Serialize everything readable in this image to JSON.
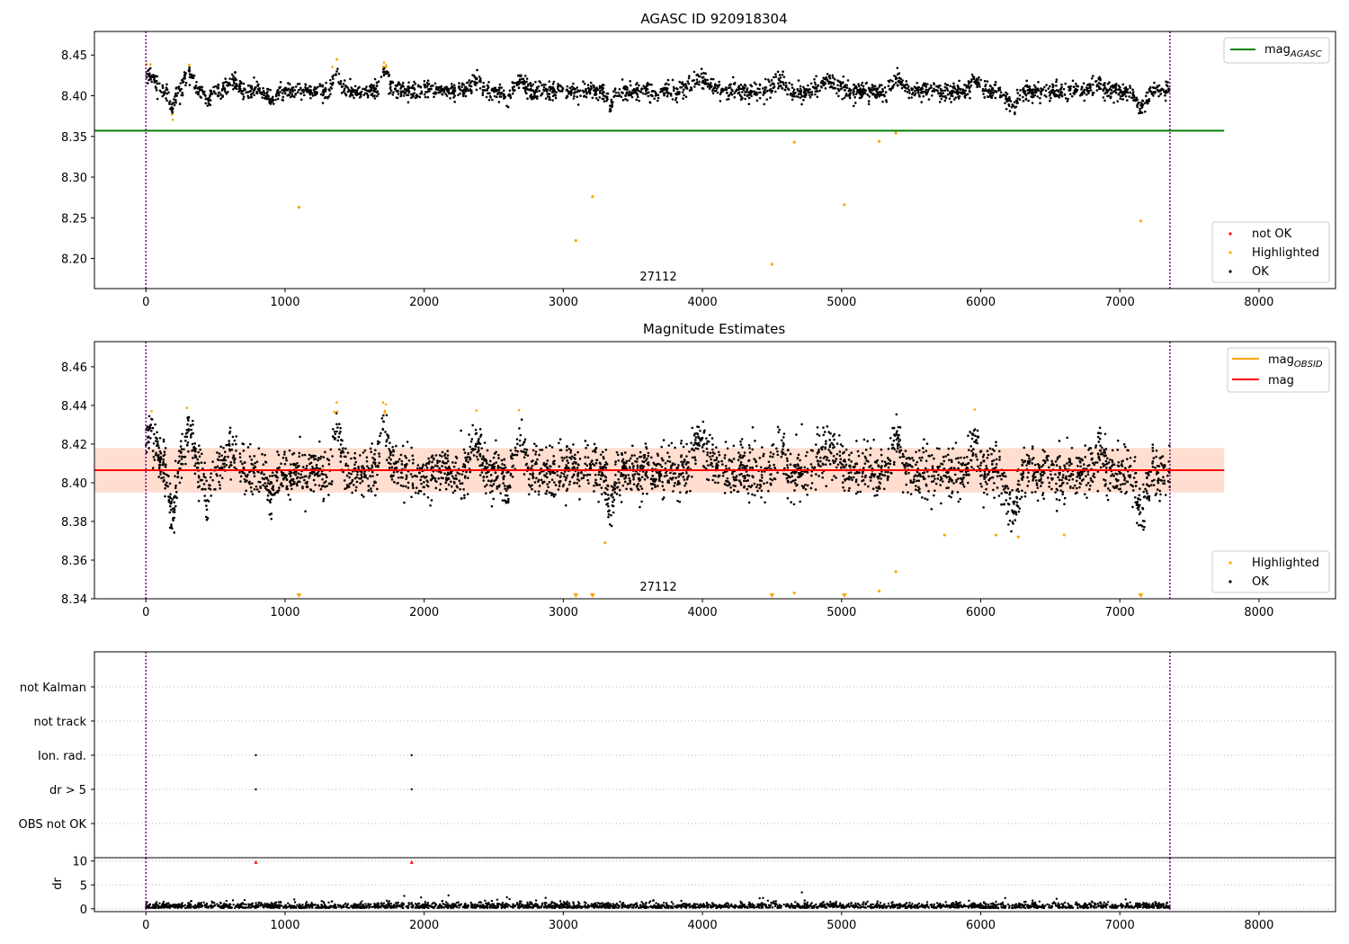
{
  "chart_data": [
    {
      "type": "scatter",
      "title": "AGASC ID 920918304",
      "xlim": [
        -370,
        8550
      ],
      "ylim": [
        8.163,
        8.479
      ],
      "xticks": [
        0,
        1000,
        2000,
        3000,
        4000,
        5000,
        6000,
        7000,
        8000
      ],
      "yticks": [
        8.2,
        8.25,
        8.3,
        8.35,
        8.4,
        8.45
      ],
      "grid": false,
      "mag_agasc": 8.357,
      "mag_agasc_xrange": [
        -370,
        7750
      ],
      "obs_boundaries": [
        0,
        7360
      ],
      "obsid_label": "27112",
      "obsid_label_x": 3680,
      "highlighted_outliers": [
        [
          1100,
          8.263
        ],
        [
          3090,
          8.222
        ],
        [
          3210,
          8.276
        ],
        [
          4500,
          8.193
        ],
        [
          4660,
          8.343
        ],
        [
          5020,
          8.266
        ],
        [
          5270,
          8.344
        ],
        [
          5390,
          8.354
        ],
        [
          7150,
          8.246
        ]
      ],
      "legend_upper": {
        "position": "top-right",
        "entries": [
          "mag_AGASC"
        ]
      },
      "legend_lower": {
        "position": "bottom-right",
        "entries": [
          "not OK",
          "Highlighted",
          "OK"
        ]
      }
    },
    {
      "type": "scatter",
      "title": "Magnitude Estimates",
      "xlim": [
        -370,
        8550
      ],
      "ylim": [
        8.34,
        8.473
      ],
      "xticks": [
        0,
        1000,
        2000,
        3000,
        4000,
        5000,
        6000,
        7000,
        8000
      ],
      "yticks": [
        8.34,
        8.36,
        8.38,
        8.4,
        8.42,
        8.44,
        8.46
      ],
      "grid": false,
      "mag": 8.4065,
      "mag_band": [
        8.395,
        8.418
      ],
      "mag_xrange": [
        -370,
        7750
      ],
      "obs_boundaries": [
        0,
        7360
      ],
      "obsid_label": "27112",
      "obsid_label_x": 3680,
      "clipped_markers_x": [
        1100,
        3090,
        3210,
        4500,
        5020,
        7150
      ],
      "highlighted_outliers": [
        [
          4660,
          8.343
        ],
        [
          5270,
          8.344
        ],
        [
          5390,
          8.354
        ],
        [
          5740,
          8.373
        ],
        [
          6110,
          8.373
        ],
        [
          6270,
          8.372
        ],
        [
          6600,
          8.373
        ],
        [
          3300,
          8.369
        ]
      ],
      "legend_upper": {
        "position": "top-right",
        "entries": [
          "mag_OBSID",
          "mag"
        ]
      },
      "legend_lower": {
        "position": "bottom-right",
        "entries": [
          "Highlighted",
          "OK"
        ]
      }
    },
    {
      "type": "scatter",
      "title": "",
      "xlim": [
        -370,
        8550
      ],
      "categories": [
        "OBS not OK",
        "dr > 5",
        "Ion. rad.",
        "not track",
        "not Kalman"
      ],
      "flags": {
        "Ion. rad.": [
          790,
          1910
        ],
        "dr > 5": [
          790,
          1910
        ]
      },
      "obs_boundaries": [
        0,
        7360
      ],
      "grid": true
    },
    {
      "type": "scatter",
      "title": "",
      "ylabel": "dr",
      "xlim": [
        -370,
        8550
      ],
      "ylim": [
        -0.6,
        10.7
      ],
      "xticks": [
        0,
        1000,
        2000,
        3000,
        4000,
        5000,
        6000,
        7000,
        8000
      ],
      "yticks": [
        0,
        5,
        10
      ],
      "clipped_red_x": [
        790,
        1910
      ],
      "grid": true
    }
  ],
  "legend_text": {
    "mag_main": "mag",
    "agasc_sub": "AGASC",
    "obsid_sub": "OBSID",
    "not_ok": "not OK",
    "highlighted": "Highlighted",
    "ok": "OK"
  },
  "colors": {
    "ok": "#000000",
    "highlighted": "#ffa500",
    "not_ok": "#ff0000",
    "mag_agasc": "#008000",
    "mag": "#ff0000",
    "boundary": "#800080",
    "band": "#ffd8c8"
  }
}
